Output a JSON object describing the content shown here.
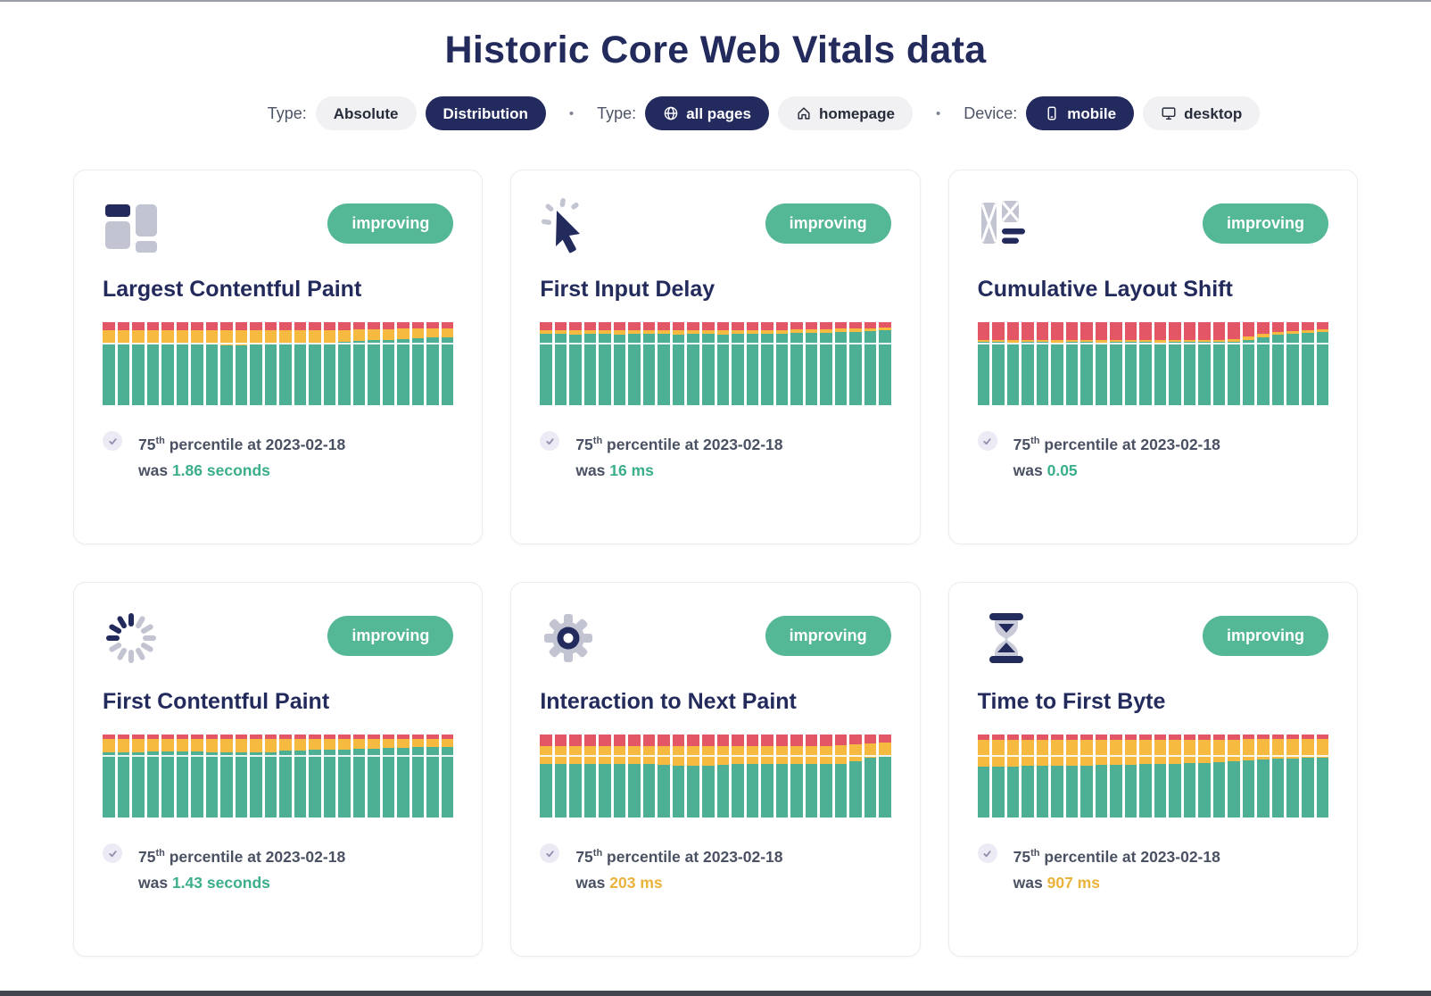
{
  "page": {
    "title": "Historic Core Web Vitals data"
  },
  "filters": {
    "separator": "•",
    "groups": [
      {
        "label": "Type:",
        "options": [
          {
            "label": "Absolute",
            "active": false
          },
          {
            "label": "Distribution",
            "active": true
          }
        ]
      },
      {
        "label": "Type:",
        "options": [
          {
            "label": "all pages",
            "active": true,
            "icon": "globe-icon"
          },
          {
            "label": "homepage",
            "active": false,
            "icon": "home-icon"
          }
        ]
      },
      {
        "label": "Device:",
        "options": [
          {
            "label": "mobile",
            "active": true,
            "icon": "phone-icon"
          },
          {
            "label": "desktop",
            "active": false,
            "icon": "monitor-icon"
          }
        ]
      }
    ]
  },
  "colors": {
    "navy": "#232a5c",
    "badge_green": "#54b795",
    "bar_good": "#4daf94",
    "bar_needs_improvement": "#f6ba40",
    "bar_poor": "#e25666",
    "value_good": "#3bae8c",
    "value_needs_improvement": "#e9b33c"
  },
  "cards": [
    {
      "id": "lcp",
      "icon": "layout-blocks-icon",
      "badge": "improving",
      "title": "Largest Contentful Paint",
      "stat": {
        "p": "75",
        "sup": "th",
        "rest": " percentile at 2023-02-18",
        "was": "was "
      },
      "value": "1.86 seconds",
      "value_color": "#3bae8c",
      "chart": {
        "type": "stacked-bar",
        "percentile_line_pct": 75,
        "colors": {
          "good": "#4daf94",
          "needs_improvement": "#f6ba40",
          "poor": "#e25666"
        },
        "bars_gyr": [
          [
            74,
            16,
            10
          ],
          [
            74,
            16,
            10
          ],
          [
            73,
            17,
            10
          ],
          [
            74,
            16,
            10
          ],
          [
            74,
            16,
            10
          ],
          [
            75,
            15,
            10
          ],
          [
            75,
            15,
            10
          ],
          [
            73,
            17,
            10
          ],
          [
            72,
            18,
            10
          ],
          [
            72,
            18,
            10
          ],
          [
            73,
            17,
            10
          ],
          [
            74,
            16,
            10
          ],
          [
            75,
            15,
            10
          ],
          [
            75,
            15,
            10
          ],
          [
            75,
            15,
            10
          ],
          [
            74,
            16,
            10
          ],
          [
            76,
            14,
            10
          ],
          [
            77,
            14,
            9
          ],
          [
            78,
            13,
            9
          ],
          [
            79,
            12,
            9
          ],
          [
            80,
            12,
            8
          ],
          [
            81,
            11,
            8
          ],
          [
            82,
            10,
            8
          ],
          [
            82,
            10,
            8
          ]
        ]
      }
    },
    {
      "id": "fid",
      "icon": "cursor-click-icon",
      "badge": "improving",
      "title": "First Input Delay",
      "stat": {
        "p": "75",
        "sup": "th",
        "rest": " percentile at 2023-02-18",
        "was": "was "
      },
      "value": "16 ms",
      "value_color": "#3bae8c",
      "chart": {
        "type": "stacked-bar",
        "percentile_line_pct": 75,
        "colors": {
          "good": "#4daf94",
          "needs_improvement": "#f6ba40",
          "poor": "#e25666"
        },
        "bars_gyr": [
          [
            86,
            4,
            10
          ],
          [
            86,
            4,
            10
          ],
          [
            85,
            5,
            10
          ],
          [
            86,
            4,
            10
          ],
          [
            86,
            4,
            10
          ],
          [
            85,
            5,
            10
          ],
          [
            86,
            4,
            10
          ],
          [
            86,
            4,
            10
          ],
          [
            86,
            4,
            10
          ],
          [
            85,
            5,
            10
          ],
          [
            86,
            4,
            10
          ],
          [
            86,
            4,
            10
          ],
          [
            85,
            5,
            10
          ],
          [
            86,
            4,
            10
          ],
          [
            86,
            4,
            10
          ],
          [
            86,
            4,
            10
          ],
          [
            86,
            4,
            10
          ],
          [
            87,
            4,
            9
          ],
          [
            87,
            4,
            9
          ],
          [
            87,
            4,
            9
          ],
          [
            88,
            4,
            8
          ],
          [
            88,
            4,
            8
          ],
          [
            89,
            4,
            7
          ],
          [
            90,
            4,
            6
          ]
        ]
      }
    },
    {
      "id": "cls",
      "icon": "layout-shift-icon",
      "badge": "improving",
      "title": "Cumulative Layout Shift",
      "stat": {
        "p": "75",
        "sup": "th",
        "rest": " percentile at 2023-02-18",
        "was": "was "
      },
      "value": "0.05",
      "value_color": "#3bae8c",
      "chart": {
        "type": "stacked-bar",
        "percentile_line_pct": 75,
        "colors": {
          "good": "#4daf94",
          "needs_improvement": "#f6ba40",
          "poor": "#e25666"
        },
        "bars_gyr": [
          [
            76,
            2,
            22
          ],
          [
            76,
            2,
            22
          ],
          [
            75,
            3,
            22
          ],
          [
            76,
            2,
            22
          ],
          [
            76,
            2,
            22
          ],
          [
            75,
            3,
            22
          ],
          [
            76,
            2,
            22
          ],
          [
            76,
            2,
            22
          ],
          [
            75,
            3,
            22
          ],
          [
            76,
            2,
            22
          ],
          [
            76,
            2,
            22
          ],
          [
            76,
            2,
            22
          ],
          [
            75,
            3,
            22
          ],
          [
            76,
            2,
            22
          ],
          [
            76,
            2,
            22
          ],
          [
            76,
            2,
            22
          ],
          [
            76,
            3,
            21
          ],
          [
            76,
            4,
            20
          ],
          [
            78,
            5,
            17
          ],
          [
            82,
            4,
            14
          ],
          [
            85,
            3,
            12
          ],
          [
            86,
            3,
            11
          ],
          [
            87,
            3,
            10
          ],
          [
            88,
            3,
            9
          ]
        ]
      }
    },
    {
      "id": "fcp",
      "icon": "spinner-icon",
      "badge": "improving",
      "title": "First Contentful Paint",
      "stat": {
        "p": "75",
        "sup": "th",
        "rest": " percentile at 2023-02-18",
        "was": "was "
      },
      "value": "1.43 seconds",
      "value_color": "#3bae8c",
      "chart": {
        "type": "stacked-bar",
        "percentile_line_pct": 75,
        "colors": {
          "good": "#4daf94",
          "needs_improvement": "#f6ba40",
          "poor": "#e25666"
        },
        "bars_gyr": [
          [
            79,
            16,
            5
          ],
          [
            79,
            16,
            5
          ],
          [
            78,
            17,
            5
          ],
          [
            80,
            15,
            5
          ],
          [
            80,
            15,
            5
          ],
          [
            80,
            15,
            5
          ],
          [
            80,
            15,
            5
          ],
          [
            79,
            16,
            5
          ],
          [
            79,
            16,
            5
          ],
          [
            78,
            17,
            5
          ],
          [
            78,
            17,
            5
          ],
          [
            79,
            16,
            5
          ],
          [
            81,
            14,
            5
          ],
          [
            81,
            14,
            5
          ],
          [
            82,
            13,
            5
          ],
          [
            82,
            13,
            5
          ],
          [
            82,
            13,
            5
          ],
          [
            83,
            12,
            5
          ],
          [
            83,
            12,
            5
          ],
          [
            84,
            11,
            5
          ],
          [
            84,
            11,
            5
          ],
          [
            85,
            10,
            5
          ],
          [
            85,
            10,
            5
          ],
          [
            85,
            10,
            5
          ]
        ]
      }
    },
    {
      "id": "inp",
      "icon": "gear-icon",
      "badge": "improving",
      "title": "Interaction to Next Paint",
      "stat": {
        "p": "75",
        "sup": "th",
        "rest": " percentile at 2023-02-18",
        "was": "was "
      },
      "value": "203 ms",
      "value_color": "#e9b33c",
      "chart": {
        "type": "stacked-bar",
        "percentile_line_pct": 75,
        "colors": {
          "good": "#4daf94",
          "needs_improvement": "#f6ba40",
          "poor": "#e25666"
        },
        "bars_gyr": [
          [
            64,
            22,
            14
          ],
          [
            64,
            22,
            14
          ],
          [
            64,
            22,
            14
          ],
          [
            64,
            22,
            14
          ],
          [
            64,
            22,
            14
          ],
          [
            64,
            22,
            14
          ],
          [
            64,
            22,
            14
          ],
          [
            64,
            22,
            14
          ],
          [
            63,
            23,
            14
          ],
          [
            62,
            24,
            14
          ],
          [
            62,
            24,
            14
          ],
          [
            62,
            24,
            14
          ],
          [
            63,
            23,
            14
          ],
          [
            64,
            22,
            14
          ],
          [
            64,
            22,
            14
          ],
          [
            64,
            22,
            14
          ],
          [
            64,
            22,
            14
          ],
          [
            64,
            22,
            14
          ],
          [
            64,
            22,
            14
          ],
          [
            64,
            22,
            14
          ],
          [
            65,
            22,
            13
          ],
          [
            68,
            20,
            12
          ],
          [
            72,
            17,
            11
          ],
          [
            75,
            15,
            10
          ]
        ]
      }
    },
    {
      "id": "ttfb",
      "icon": "hourglass-icon",
      "badge": "improving",
      "title": "Time to First Byte",
      "stat": {
        "p": "75",
        "sup": "th",
        "rest": " percentile at 2023-02-18",
        "was": "was "
      },
      "value": "907 ms",
      "value_color": "#e9b33c",
      "chart": {
        "type": "stacked-bar",
        "percentile_line_pct": 75,
        "colors": {
          "good": "#4daf94",
          "needs_improvement": "#f6ba40",
          "poor": "#e25666"
        },
        "bars_gyr": [
          [
            61,
            33,
            6
          ],
          [
            61,
            33,
            6
          ],
          [
            61,
            33,
            6
          ],
          [
            62,
            32,
            6
          ],
          [
            62,
            32,
            6
          ],
          [
            62,
            32,
            6
          ],
          [
            62,
            32,
            6
          ],
          [
            62,
            32,
            6
          ],
          [
            63,
            31,
            6
          ],
          [
            63,
            31,
            6
          ],
          [
            63,
            31,
            6
          ],
          [
            64,
            30,
            6
          ],
          [
            64,
            30,
            6
          ],
          [
            65,
            29,
            6
          ],
          [
            66,
            28,
            6
          ],
          [
            66,
            28,
            6
          ],
          [
            67,
            27,
            6
          ],
          [
            68,
            26,
            6
          ],
          [
            69,
            26,
            5
          ],
          [
            70,
            25,
            5
          ],
          [
            71,
            24,
            5
          ],
          [
            71,
            24,
            5
          ],
          [
            72,
            23,
            5
          ],
          [
            72,
            23,
            5
          ]
        ]
      }
    }
  ]
}
